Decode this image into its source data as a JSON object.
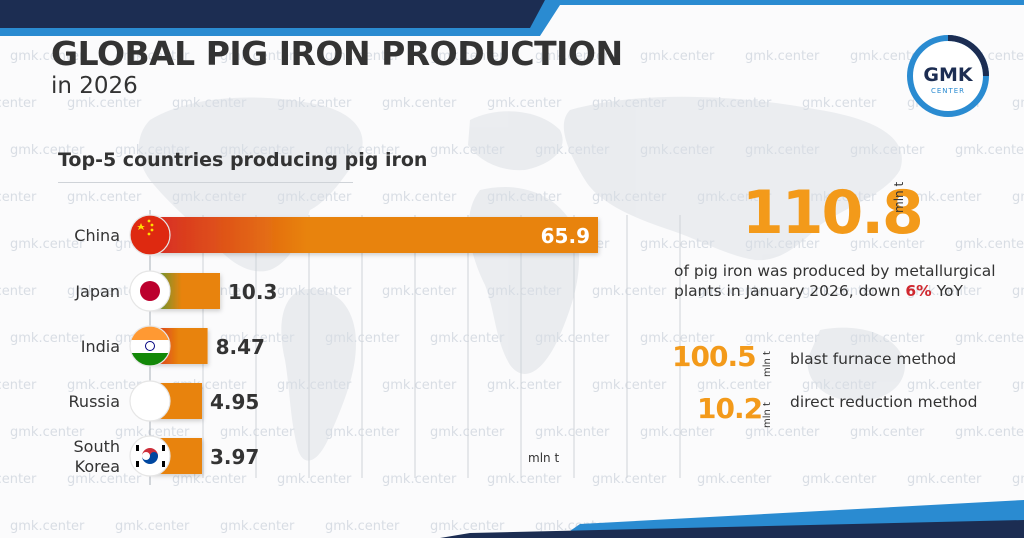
{
  "title": "GLOBAL PIG IRON PRODUCTION",
  "subtitle": "in 2026",
  "logo": {
    "text": "GMK",
    "subtext": "CENTER",
    "icon": "gmk-center-logo"
  },
  "watermark": "gmk.center",
  "chart_data": {
    "type": "bar",
    "orientation": "horizontal",
    "title": "Top-5 countries producing pig iron",
    "categories": [
      "China",
      "Japan",
      "India",
      "Russia",
      "South Korea"
    ],
    "category_lines": [
      [
        "China"
      ],
      [
        "Japan"
      ],
      [
        "India"
      ],
      [
        "Russia"
      ],
      [
        "South",
        "Korea"
      ]
    ],
    "values": [
      65.9,
      10.3,
      8.47,
      4.95,
      3.97
    ],
    "value_labels": [
      "65.9",
      "10.3",
      "8.47",
      "4.95",
      "3.97"
    ],
    "unit": "mln t",
    "xlim": [
      0,
      70
    ],
    "grid": true,
    "flags": [
      "china-flag-icon",
      "japan-flag-icon",
      "india-flag-icon",
      "russia-flag-icon",
      "south-korea-flag-icon"
    ],
    "bar_color": "#e8830c"
  },
  "summary": {
    "total_value": "110.8",
    "total_unit": "mln t",
    "text_before": "of pig iron was produced by metallurgical plants in January 2026, down ",
    "percent": "6%",
    "text_after": " YoY"
  },
  "methods": [
    {
      "value": "100.5",
      "unit": "mln t",
      "label": "blast furnace method"
    },
    {
      "value": "10.2",
      "unit": "mln t",
      "label": "direct reduction method"
    }
  ],
  "colors": {
    "accent": "#f39a1a",
    "navy": "#1c2d52",
    "blue": "#2a8bd1",
    "red": "#d0282f"
  }
}
